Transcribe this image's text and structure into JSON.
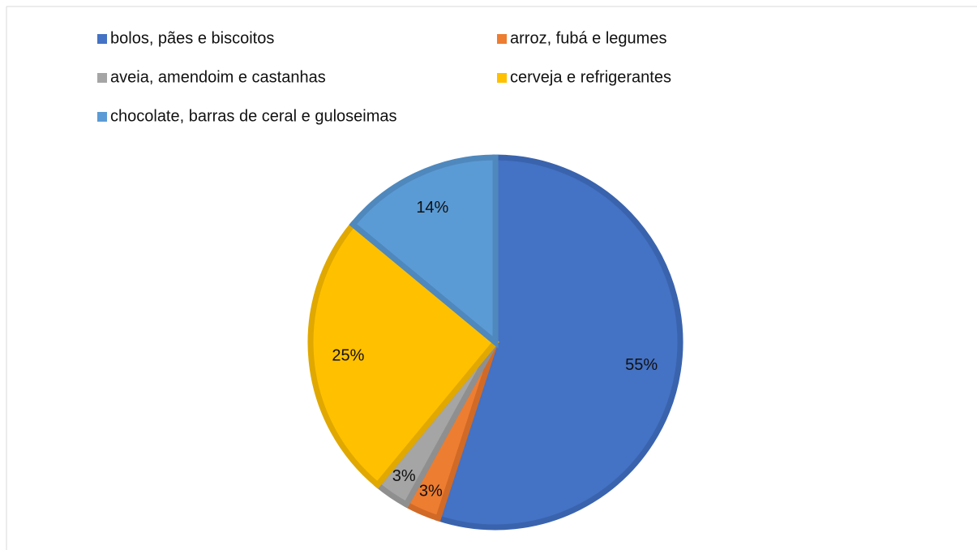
{
  "chart_data": {
    "type": "pie",
    "categories": [
      "bolos, pães e biscoitos",
      "arroz, fubá e legumes",
      "aveia, amendoim e castanhas",
      "cerveja e refrigerantes",
      "chocolate, barras de ceral e guloseimas"
    ],
    "values": [
      55,
      3,
      3,
      25,
      14
    ],
    "value_labels": [
      "55%",
      "3%",
      "3%",
      "25%",
      "14%"
    ],
    "colors": [
      "#4472c4",
      "#ed7d31",
      "#a5a5a5",
      "#ffc000",
      "#5b9bd5"
    ],
    "border_colors": [
      "#3a63ad",
      "#d16a26",
      "#8f8f8f",
      "#e0a800",
      "#4f88bd"
    ],
    "legend": "top"
  }
}
